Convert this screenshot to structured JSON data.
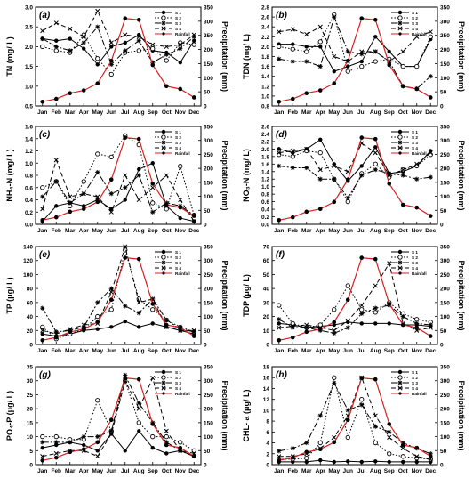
{
  "chart_data": [
    {
      "type": "line",
      "panel_label": "(a)",
      "ylabel": "TN (mg/ L)",
      "y2label": "Precipitation (mm)",
      "categories": [
        "Jan",
        "Feb",
        "Mar",
        "Apr",
        "May",
        "Jun",
        "Jul",
        "Aug",
        "Sep",
        "Oct",
        "Nov",
        "Dec"
      ],
      "ylim": [
        0.5,
        3.0
      ],
      "yticks": [
        0.5,
        1.0,
        1.5,
        2.0,
        2.5,
        3.0
      ],
      "y2lim": [
        0,
        350
      ],
      "y2ticks": [
        0,
        50,
        100,
        150,
        200,
        250,
        300,
        350
      ],
      "series": [
        {
          "name": "S 1",
          "style": "solid-dot",
          "values": [
            2.2,
            2.15,
            2.2,
            1.95,
            1.55,
            2.0,
            2.1,
            2.3,
            1.9,
            1.85,
            1.6,
            2.15
          ]
        },
        {
          "name": "S 2",
          "style": "dot-circle",
          "values": [
            2.0,
            1.9,
            1.85,
            2.3,
            1.7,
            1.3,
            1.85,
            1.9,
            1.95,
            1.65,
            2.1,
            2.05
          ]
        },
        {
          "name": "S 3",
          "style": "dashdot-star",
          "values": [
            2.2,
            2.0,
            1.9,
            2.1,
            2.5,
            1.55,
            1.9,
            2.15,
            1.6,
            1.8,
            1.95,
            2.25
          ]
        },
        {
          "name": "S 4",
          "style": "dash-x",
          "values": [
            2.4,
            2.6,
            2.45,
            2.25,
            2.9,
            2.1,
            2.3,
            2.25,
            2.05,
            2.0,
            2.05,
            2.3
          ]
        },
        {
          "name": "Rainfall",
          "style": "red-dot",
          "axis": "right",
          "values": [
            15,
            25,
            45,
            55,
            80,
            160,
            310,
            305,
            145,
            70,
            60,
            30
          ]
        }
      ]
    },
    {
      "type": "line",
      "panel_label": "(b)",
      "ylabel": "TDN (mg/ L)",
      "y2label": "Precipitation (mm)",
      "categories": [
        "Jan",
        "Feb",
        "Mar",
        "Apr",
        "May",
        "Jun",
        "Jul",
        "Aug",
        "Sep",
        "Oct",
        "Nov",
        "Dec"
      ],
      "ylim": [
        0.8,
        2.8
      ],
      "yticks": [
        0.8,
        1.0,
        1.2,
        1.4,
        1.6,
        1.8,
        2.0,
        2.2,
        2.4,
        2.6,
        2.8
      ],
      "y2lim": [
        0,
        350
      ],
      "y2ticks": [
        0,
        50,
        100,
        150,
        200,
        250,
        300,
        350
      ],
      "series": [
        {
          "name": "S 1",
          "style": "solid-dot",
          "values": [
            2.05,
            2.05,
            2.0,
            2.0,
            1.5,
            1.6,
            1.7,
            2.2,
            1.9,
            1.6,
            1.6,
            2.15
          ]
        },
        {
          "name": "S 2",
          "style": "dot-circle",
          "values": [
            2.0,
            1.95,
            1.9,
            2.1,
            2.65,
            1.5,
            1.6,
            1.7,
            1.75,
            1.6,
            1.6,
            2.2
          ]
        },
        {
          "name": "S 3",
          "style": "dashdot-star",
          "values": [
            1.75,
            1.7,
            1.7,
            1.6,
            2.6,
            1.9,
            1.85,
            1.9,
            1.7,
            1.2,
            1.15,
            1.4
          ]
        },
        {
          "name": "S 4",
          "style": "dash-x",
          "values": [
            2.3,
            2.35,
            2.25,
            2.4,
            1.8,
            1.7,
            1.9,
            1.9,
            1.7,
            1.9,
            2.2,
            2.3
          ]
        },
        {
          "name": "Rainfall",
          "style": "red-dot",
          "axis": "right",
          "values": [
            15,
            25,
            45,
            55,
            80,
            160,
            310,
            305,
            145,
            70,
            60,
            30
          ]
        }
      ]
    },
    {
      "type": "line",
      "panel_label": "(c)",
      "ylabel": "NH₄-N (mg/ L)",
      "y2label": "Precipitation (mm)",
      "categories": [
        "Jan",
        "Feb",
        "Mar",
        "Apr",
        "May",
        "Jun",
        "Jul",
        "Aug",
        "Sep",
        "Oct",
        "Nov",
        "Dec"
      ],
      "ylim": [
        0.0,
        1.6
      ],
      "yticks": [
        0.0,
        0.2,
        0.4,
        0.6,
        0.8,
        1.0,
        1.2,
        1.4,
        1.6
      ],
      "y2lim": [
        0,
        350
      ],
      "y2ticks": [
        0,
        50,
        100,
        150,
        200,
        250,
        300,
        350
      ],
      "series": [
        {
          "name": "S 1",
          "style": "solid-dot",
          "values": [
            0.05,
            0.3,
            0.35,
            0.3,
            0.4,
            0.25,
            0.4,
            0.9,
            1.0,
            0.3,
            0.1,
            0.05
          ]
        },
        {
          "name": "S 2",
          "style": "dot-circle",
          "values": [
            0.6,
            0.7,
            0.3,
            0.7,
            1.15,
            1.1,
            1.45,
            1.3,
            0.35,
            0.25,
            0.95,
            0.15
          ]
        },
        {
          "name": "S 3",
          "style": "dashdot-star",
          "values": [
            0.45,
            0.7,
            0.35,
            0.5,
            0.85,
            0.5,
            0.6,
            0.8,
            0.2,
            0.35,
            0.3,
            0.15
          ]
        },
        {
          "name": "S 4",
          "style": "dash-x",
          "values": [
            0.25,
            1.05,
            0.45,
            0.5,
            0.45,
            0.2,
            0.8,
            0.4,
            0.6,
            0.8,
            0.4,
            0.05
          ]
        },
        {
          "name": "Rainfall",
          "style": "red-dot",
          "axis": "right",
          "values": [
            15,
            25,
            45,
            55,
            80,
            160,
            310,
            305,
            145,
            70,
            60,
            30
          ]
        }
      ]
    },
    {
      "type": "line",
      "panel_label": "(d)",
      "ylabel": "NO₃-N (mg/ L)",
      "y2label": "Precipitation (mm)",
      "categories": [
        "Jan",
        "Feb",
        "Mar",
        "Apr",
        "May",
        "Jun",
        "Jul",
        "Aug",
        "Sep",
        "Oct",
        "Nov",
        "Dec"
      ],
      "ylim": [
        0.0,
        2.6
      ],
      "yticks": [
        0.0,
        0.2,
        0.4,
        0.6,
        0.8,
        1.0,
        1.2,
        1.4,
        1.6,
        1.8,
        2.0,
        2.2,
        2.4,
        2.6
      ],
      "y2lim": [
        0,
        350
      ],
      "y2ticks": [
        0,
        50,
        100,
        150,
        200,
        250,
        300,
        350
      ],
      "series": [
        {
          "name": "S 1",
          "style": "solid-dot",
          "values": [
            2.0,
            1.9,
            2.0,
            2.25,
            1.6,
            1.15,
            1.55,
            2.05,
            1.35,
            1.4,
            1.55,
            1.95
          ]
        },
        {
          "name": "S 2",
          "style": "dot-circle",
          "values": [
            1.85,
            1.8,
            1.95,
            1.9,
            1.2,
            0.6,
            1.35,
            1.6,
            1.25,
            1.45,
            1.55,
            1.85
          ]
        },
        {
          "name": "S 3",
          "style": "dashdot-star",
          "values": [
            1.55,
            1.5,
            1.5,
            1.2,
            1.2,
            0.7,
            1.3,
            1.45,
            1.35,
            1.3,
            1.2,
            1.25
          ]
        },
        {
          "name": "S 4",
          "style": "dash-x",
          "values": [
            1.9,
            1.95,
            2.0,
            1.45,
            1.55,
            1.4,
            2.15,
            1.9,
            1.3,
            1.45,
            1.6,
            1.9
          ]
        },
        {
          "name": "Rainfall",
          "style": "red-dot",
          "axis": "right",
          "values": [
            15,
            25,
            45,
            55,
            80,
            160,
            310,
            305,
            145,
            70,
            60,
            30
          ]
        }
      ]
    },
    {
      "type": "line",
      "panel_label": "(e)",
      "ylabel": "TP (μg/ L)",
      "y2label": "Precipitation (mm)",
      "categories": [
        "Jan",
        "Feb",
        "Mar",
        "Apr",
        "May",
        "Jun",
        "Jul",
        "Aug",
        "Sep",
        "Oct",
        "Nov",
        "Dec"
      ],
      "ylim": [
        0,
        140
      ],
      "yticks": [
        0,
        20,
        40,
        60,
        80,
        100,
        120,
        140
      ],
      "y2lim": [
        0,
        350
      ],
      "y2ticks": [
        0,
        50,
        100,
        150,
        200,
        250,
        300,
        350
      ],
      "series": [
        {
          "name": "S 1",
          "style": "solid-dot",
          "values": [
            15,
            12,
            15,
            20,
            22,
            25,
            33,
            25,
            30,
            25,
            20,
            15
          ]
        },
        {
          "name": "S 2",
          "style": "dot-circle",
          "values": [
            25,
            8,
            15,
            22,
            40,
            50,
            135,
            65,
            50,
            35,
            25,
            18
          ]
        },
        {
          "name": "S 3",
          "style": "dashdot-star",
          "values": [
            52,
            18,
            20,
            25,
            60,
            80,
            55,
            45,
            65,
            35,
            22,
            18
          ]
        },
        {
          "name": "S 4",
          "style": "dash-x",
          "values": [
            20,
            15,
            22,
            28,
            30,
            75,
            140,
            60,
            65,
            25,
            20,
            20
          ]
        },
        {
          "name": "Rainfall",
          "style": "red-dot",
          "axis": "right",
          "values": [
            15,
            25,
            45,
            55,
            80,
            160,
            310,
            305,
            145,
            70,
            60,
            30
          ]
        }
      ]
    },
    {
      "type": "line",
      "panel_label": "(f)",
      "ylabel": "TDP (μg/ L)",
      "y2label": "Precipitation (mm)",
      "categories": [
        "Jan",
        "Feb",
        "Mar",
        "Apr",
        "May",
        "Jun",
        "Jul",
        "Aug",
        "Sep",
        "Oct",
        "Nov",
        "Dec"
      ],
      "ylim": [
        0,
        70
      ],
      "yticks": [
        0,
        10,
        20,
        30,
        40,
        50,
        60,
        70
      ],
      "y2lim": [
        0,
        350
      ],
      "y2ticks": [
        0,
        50,
        100,
        150,
        200,
        250,
        300,
        350
      ],
      "series": [
        {
          "name": "S 1",
          "style": "solid-dot",
          "values": [
            15,
            14,
            12,
            13,
            14,
            16,
            15,
            15,
            15,
            14,
            14,
            13
          ]
        },
        {
          "name": "S 2",
          "style": "dot-circle",
          "values": [
            28,
            15,
            12,
            14,
            25,
            42,
            25,
            23,
            30,
            22,
            18,
            16
          ]
        },
        {
          "name": "S 3",
          "style": "dashdot-star",
          "values": [
            18,
            12,
            12,
            10,
            8,
            12,
            22,
            26,
            28,
            20,
            15,
            14
          ]
        },
        {
          "name": "S 4",
          "style": "dash-x",
          "values": [
            12,
            13,
            14,
            12,
            10,
            17,
            28,
            42,
            58,
            15,
            10,
            12
          ]
        },
        {
          "name": "Rainfall",
          "style": "red-dot",
          "axis": "right",
          "values": [
            15,
            25,
            45,
            55,
            80,
            160,
            310,
            305,
            145,
            70,
            60,
            30
          ]
        }
      ]
    },
    {
      "type": "line",
      "panel_label": "(g)",
      "ylabel": "PO₄-P (μg/ L)",
      "y2label": "Precipitation (mm)",
      "categories": [
        "Jan",
        "Feb",
        "Mar",
        "Apr",
        "May",
        "Jun",
        "Jul",
        "Aug",
        "Sep",
        "Oct",
        "Nov",
        "Dec"
      ],
      "ylim": [
        0,
        35
      ],
      "yticks": [
        0,
        5,
        10,
        15,
        20,
        25,
        30,
        35
      ],
      "y2lim": [
        0,
        350
      ],
      "y2ticks": [
        0,
        50,
        100,
        150,
        200,
        250,
        300,
        350
      ],
      "series": [
        {
          "name": "S 1",
          "style": "solid-dot",
          "values": [
            6,
            7,
            8,
            7,
            5,
            11,
            5,
            12,
            6,
            4,
            5,
            3
          ]
        },
        {
          "name": "S 2",
          "style": "dot-circle",
          "values": [
            10,
            10,
            9,
            9,
            23,
            12,
            30,
            15,
            10,
            10,
            8,
            5
          ]
        },
        {
          "name": "S 3",
          "style": "dashdot-star",
          "values": [
            8,
            8,
            8,
            10,
            10,
            12,
            32,
            22,
            15,
            8,
            5,
            3
          ]
        },
        {
          "name": "S 4",
          "style": "dash-x",
          "values": [
            3,
            4,
            5,
            5,
            3,
            11,
            30,
            20,
            31,
            12,
            5,
            4
          ]
        },
        {
          "name": "Rainfall",
          "style": "red-dot",
          "axis": "right",
          "values": [
            15,
            25,
            45,
            55,
            80,
            160,
            310,
            305,
            145,
            70,
            60,
            30
          ]
        }
      ]
    },
    {
      "type": "line",
      "panel_label": "(h)",
      "ylabel": "CHL- a (μg/ L)",
      "y2label": "Precipitation (mm)",
      "categories": [
        "Jan",
        "Feb",
        "Mar",
        "Apr",
        "May",
        "Jun",
        "Jul",
        "Aug",
        "Sep",
        "Oct",
        "Nov",
        "Dec"
      ],
      "ylim": [
        0,
        18
      ],
      "yticks": [
        0,
        2,
        4,
        6,
        8,
        10,
        12,
        14,
        16,
        18
      ],
      "y2lim": [
        0,
        350
      ],
      "y2ticks": [
        0,
        50,
        100,
        150,
        200,
        250,
        300,
        350
      ],
      "series": [
        {
          "name": "S 1",
          "style": "solid-dot",
          "values": [
            0.5,
            0.5,
            0.5,
            0.8,
            0.5,
            0.6,
            0.5,
            0.6,
            0.5,
            0.5,
            0.5,
            0.5
          ]
        },
        {
          "name": "S 2",
          "style": "dot-circle",
          "values": [
            1,
            1,
            1.2,
            4,
            16,
            5,
            12,
            4,
            2,
            1.5,
            1.2,
            1
          ]
        },
        {
          "name": "S 3",
          "style": "dashdot-star",
          "values": [
            2.5,
            3,
            4,
            9,
            15,
            10,
            11,
            7,
            6,
            4,
            3,
            2
          ]
        },
        {
          "name": "S 4",
          "style": "dash-x",
          "values": [
            1.5,
            1.5,
            2,
            3,
            5,
            9,
            16,
            9,
            5,
            3,
            1.5,
            1
          ]
        },
        {
          "name": "Rainfall",
          "style": "red-dot",
          "axis": "right",
          "values": [
            15,
            25,
            45,
            55,
            80,
            160,
            310,
            305,
            145,
            70,
            60,
            30
          ]
        }
      ]
    }
  ]
}
